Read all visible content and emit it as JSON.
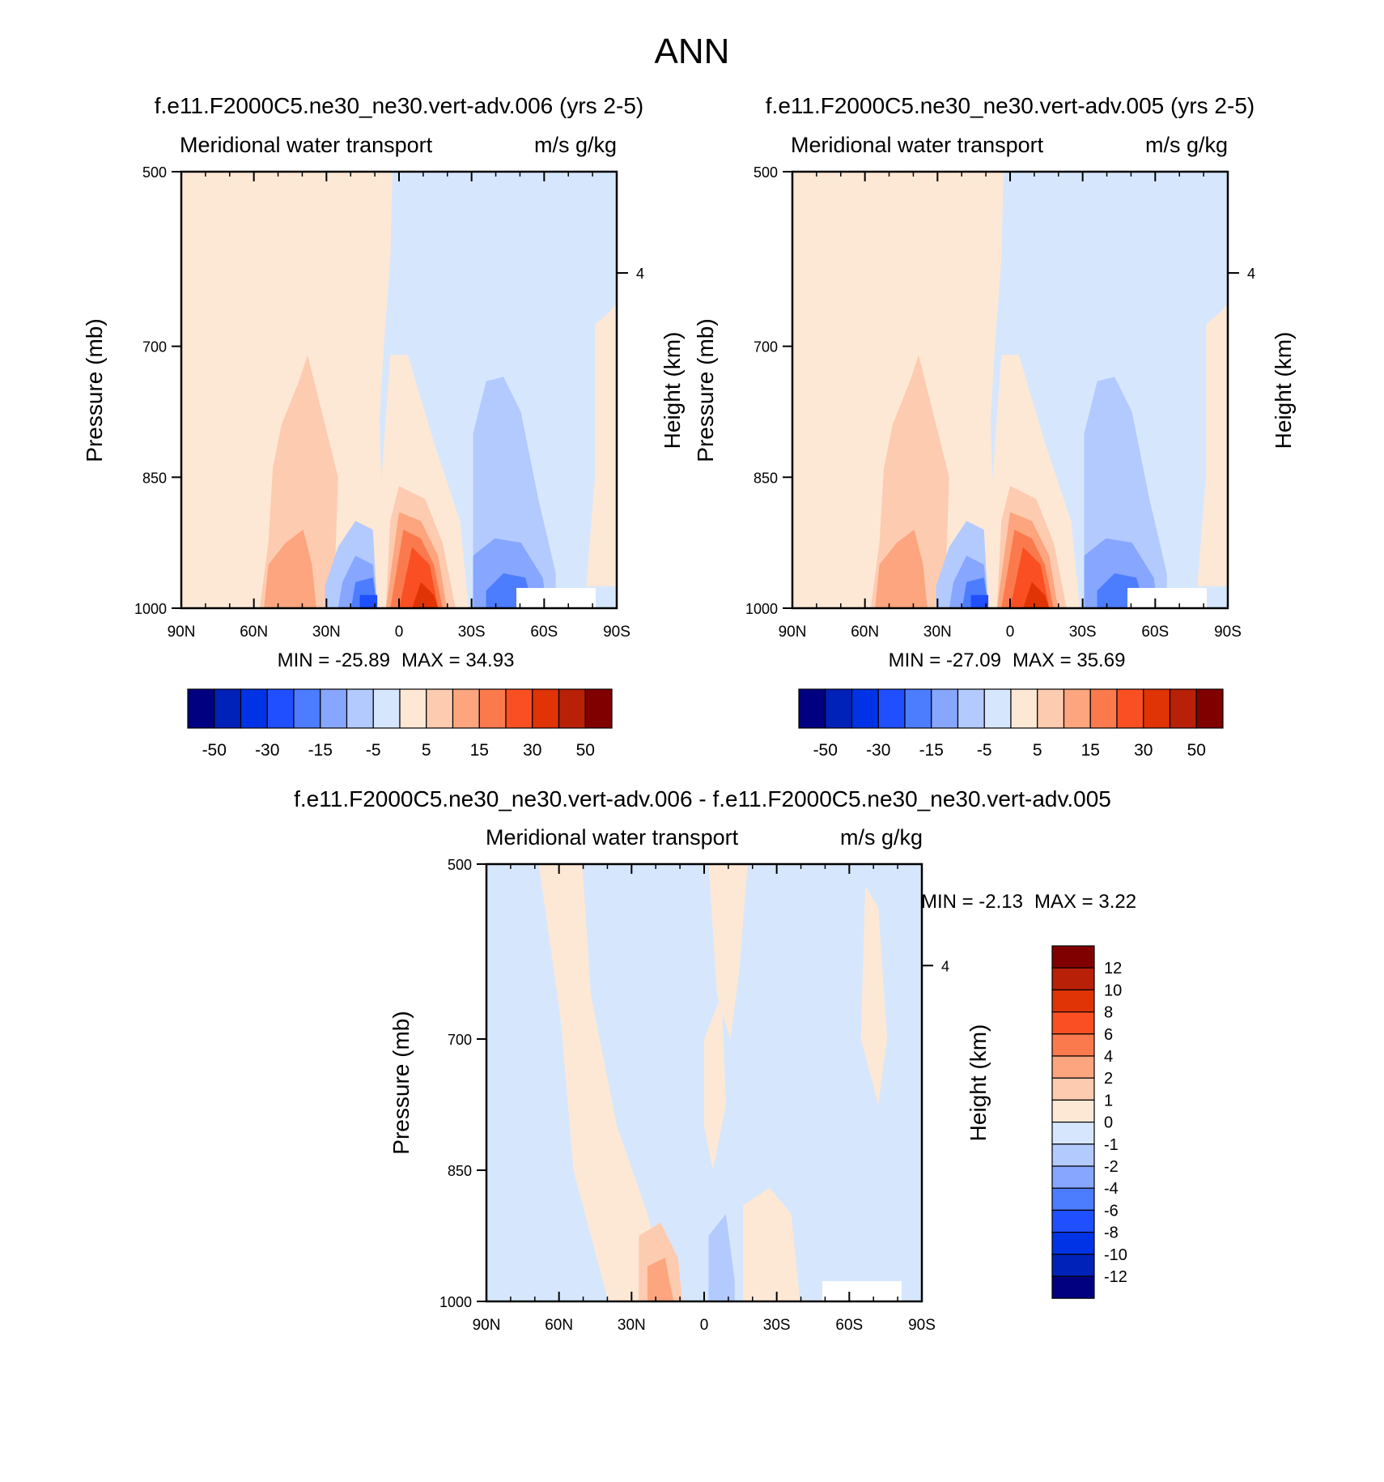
{
  "figure_title": "ANN",
  "colors": {
    "main_palette": [
      "#000080",
      "#0022b8",
      "#0033e6",
      "#1f4fff",
      "#4c7cff",
      "#86a6ff",
      "#b3caff",
      "#d6e7fd",
      "#fde8d5",
      "#fdcbb0",
      "#fca57e",
      "#fb7a4d",
      "#fa4f22",
      "#e03306",
      "#b82007",
      "#800000"
    ],
    "diff_palette": [
      "#000080",
      "#0022b8",
      "#0033e6",
      "#1f4fff",
      "#4c7cff",
      "#86a6ff",
      "#b3caff",
      "#d6e7fd",
      "#fde8d5",
      "#fdcbb0",
      "#fca57e",
      "#fb7a4d",
      "#fa4f22",
      "#e03306",
      "#b82007",
      "#800000"
    ]
  },
  "chart_data": [
    {
      "type": "heatmap",
      "title": "f.e11.F2000C5.ne30_ne30.vert-adv.006 (yrs 2-5)",
      "left_string": "Meridional water transport",
      "right_string": "m/s g/kg",
      "ylabel": "Pressure (mb)",
      "ylabel_right": "Height (km)",
      "xticks": [
        "90N",
        "60N",
        "30N",
        "0",
        "30S",
        "60S",
        "90S"
      ],
      "yticks": [
        "500",
        "700",
        "850",
        "1000"
      ],
      "yticks_right": [
        "4"
      ],
      "ylim": [
        1000,
        500
      ],
      "min_label": "MIN = -25.89",
      "max_label": "MAX =  34.93",
      "colorbar_labels": [
        "-50",
        "-30",
        "-15",
        "-5",
        "5",
        "15",
        "30",
        "50"
      ]
    },
    {
      "type": "heatmap",
      "title": "f.e11.F2000C5.ne30_ne30.vert-adv.005 (yrs 2-5)",
      "left_string": "Meridional water transport",
      "right_string": "m/s g/kg",
      "ylabel": "Pressure (mb)",
      "ylabel_right": "Height (km)",
      "xticks": [
        "90N",
        "60N",
        "30N",
        "0",
        "30S",
        "60S",
        "90S"
      ],
      "yticks": [
        "500",
        "700",
        "850",
        "1000"
      ],
      "yticks_right": [
        "4"
      ],
      "ylim": [
        1000,
        500
      ],
      "min_label": "MIN = -27.09",
      "max_label": "MAX =  35.69",
      "colorbar_labels": [
        "-50",
        "-30",
        "-15",
        "-5",
        "5",
        "15",
        "30",
        "50"
      ]
    },
    {
      "type": "heatmap",
      "title": "f.e11.F2000C5.ne30_ne30.vert-adv.006 - f.e11.F2000C5.ne30_ne30.vert-adv.005",
      "left_string": "Meridional water transport",
      "right_string": "m/s g/kg",
      "ylabel": "Pressure (mb)",
      "ylabel_right": "Height (km)",
      "xticks": [
        "90N",
        "60N",
        "30N",
        "0",
        "30S",
        "60S",
        "90S"
      ],
      "yticks": [
        "500",
        "700",
        "850",
        "1000"
      ],
      "yticks_right": [
        "4"
      ],
      "ylim": [
        1000,
        500
      ],
      "min_label": "MIN =  -2.13",
      "max_label": "MAX =   3.22",
      "colorbar_labels": [
        "12",
        "10",
        "8",
        "6",
        "4",
        "2",
        "1",
        "0",
        "-1",
        "-2",
        "-4",
        "-6",
        "-8",
        "-10",
        "-12"
      ]
    }
  ]
}
